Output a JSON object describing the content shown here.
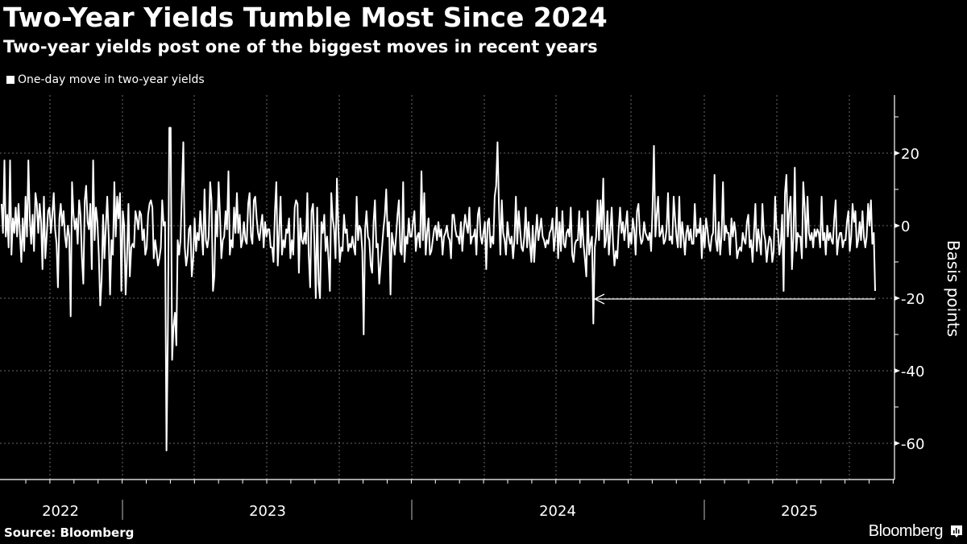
{
  "header": {
    "title": "Two-Year Yields Tumble Most Since 2024",
    "subtitle": "Two-year yields post one of the biggest moves in recent years"
  },
  "legend": {
    "label": "One-day move in two-year yields",
    "color": "#ffffff"
  },
  "footer": {
    "source": "Source: Bloomberg",
    "brand": "Bloomberg"
  },
  "chart_data": {
    "type": "line",
    "title": "Two-Year Yields Tumble Most Since 2024",
    "subtitle": "Two-year yields post one of the biggest moves in recent years",
    "xlabel": "",
    "ylabel": "Basis points",
    "ylim": [
      -70,
      35
    ],
    "yticks": [
      20,
      0,
      -20,
      -40,
      -60
    ],
    "xtick_labels": [
      "2022",
      "2023",
      "2024",
      "2025"
    ],
    "grid": true,
    "legend_position": "top-left",
    "series": [
      {
        "name": "One-day move in two-year yields",
        "note": "Approximate daily values read from chart (basis points), chronological from 2022 to 2025",
        "values": [
          6,
          -2,
          18,
          -3,
          3,
          -6,
          18,
          -8,
          2,
          -2,
          5,
          -3,
          6,
          -2,
          -10,
          2,
          -7,
          8,
          -3,
          18,
          2,
          -5,
          3,
          -7,
          9,
          6,
          -2,
          6,
          1,
          -12,
          8,
          -9,
          -3,
          4,
          5,
          -2,
          3,
          9,
          -1,
          -5,
          -17,
          2,
          6,
          0,
          4,
          -3,
          -6,
          0,
          -3,
          -25,
          12,
          3,
          -1,
          2,
          -5,
          7,
          3,
          -9,
          -16,
          7,
          11,
          1,
          -1,
          6,
          -12,
          18,
          -4,
          5,
          1,
          -8,
          -22,
          -15,
          3,
          -9,
          0,
          8,
          -3,
          -19,
          -4,
          -8,
          12,
          -3,
          8,
          2,
          9,
          -18,
          4,
          0,
          -19,
          -9,
          6,
          -14,
          -6,
          -5,
          -6,
          4,
          2,
          -1,
          4,
          3,
          -4,
          -1,
          -8,
          -6,
          3,
          6,
          7,
          5,
          -9,
          -4,
          -7,
          -11,
          -9,
          -6,
          7,
          0,
          1,
          -62,
          -30,
          27,
          27,
          -37,
          -28,
          -24,
          -33,
          -4,
          -8,
          -4,
          10,
          23,
          -6,
          -11,
          -8,
          -1,
          0,
          -14,
          -9,
          2,
          -7,
          -2,
          -4,
          4,
          -2,
          -8,
          10,
          -4,
          -6,
          -3,
          12,
          7,
          -18,
          -14,
          4,
          -3,
          12,
          3,
          -9,
          -4,
          -3,
          4,
          -1,
          15,
          -8,
          -4,
          -6,
          5,
          -2,
          9,
          -2,
          3,
          -6,
          -4,
          1,
          -4,
          -5,
          6,
          9,
          -3,
          -5,
          7,
          8,
          2,
          -2,
          -4,
          0,
          3,
          -6,
          1,
          -3,
          -1,
          -1,
          -6,
          -6,
          -10,
          4,
          12,
          -11,
          -2,
          8,
          -8,
          -4,
          -6,
          -1,
          -2,
          2,
          -9,
          -4,
          -8,
          5,
          7,
          6,
          -13,
          2,
          -4,
          -5,
          -2,
          -5,
          9,
          -8,
          -17,
          4,
          6,
          -4,
          -20,
          5,
          -16,
          -20,
          1,
          -2,
          3,
          -7,
          -3,
          -9,
          -18,
          9,
          2,
          -1,
          -9,
          13,
          -1,
          -10,
          -6,
          -7,
          3,
          -2,
          -1,
          -7,
          -5,
          -6,
          -3,
          -6,
          -8,
          8,
          -4,
          0,
          -1,
          -7,
          -30,
          -1,
          4,
          -3,
          -4,
          -11,
          -13,
          1,
          7,
          -6,
          -5,
          -16,
          -11,
          -6,
          -1,
          3,
          10,
          -3,
          1,
          -19,
          -2,
          -5,
          -8,
          -3,
          3,
          7,
          -7,
          -8,
          12,
          -10,
          -3,
          -5,
          2,
          -3,
          -3,
          1,
          4,
          -7,
          -3,
          -2,
          -6,
          15,
          -4,
          9,
          -8,
          -2,
          2,
          -8,
          -7,
          -4,
          -1,
          0,
          -4,
          1,
          -3,
          -1,
          -8,
          -3,
          -2,
          0,
          -3,
          -4,
          -9,
          3,
          3,
          -1,
          -3,
          -3,
          -5,
          1,
          -7,
          -1,
          3,
          0,
          -2,
          5,
          -5,
          -3,
          -3,
          -1,
          -8,
          3,
          5,
          -3,
          -5,
          -2,
          1,
          -12,
          1,
          2,
          -6,
          -3,
          -5,
          8,
          11,
          23,
          5,
          -8,
          7,
          -2,
          -4,
          -8,
          1,
          -3,
          -5,
          -3,
          -9,
          -4,
          8,
          -5,
          4,
          -1,
          -6,
          -7,
          -3,
          5,
          -6,
          1,
          -5,
          -10,
          0,
          -10,
          -3,
          3,
          -4,
          -1,
          2,
          -3,
          -4,
          -6,
          -4,
          -5,
          -2,
          -1,
          2,
          -7,
          -3,
          5,
          -9,
          1,
          -7,
          4,
          -5,
          -6,
          -2,
          -1,
          -3,
          5,
          -8,
          -10,
          -5,
          -4,
          -4,
          4,
          -6,
          2,
          -5,
          -9,
          -14,
          4,
          -8,
          -5,
          -3,
          -27,
          -6,
          -3,
          7,
          -4,
          7,
          -1,
          13,
          -6,
          -4,
          4,
          -8,
          -2,
          5,
          -5,
          -11,
          -7,
          -9,
          -1,
          5,
          -2,
          1,
          -4,
          0,
          4,
          -6,
          -2,
          -5,
          2,
          -1,
          -8,
          4,
          6,
          -2,
          -5,
          -4,
          1,
          -2,
          -3,
          -4,
          -2,
          -7,
          5,
          22,
          -3,
          3,
          8,
          -3,
          -2,
          0,
          -5,
          -4,
          -1,
          9,
          -4,
          -3,
          -5,
          8,
          2,
          -3,
          -6,
          8,
          -6,
          1,
          -3,
          -8,
          -2,
          0,
          -4,
          -1,
          -5,
          -5,
          6,
          -3,
          -1,
          -2,
          2,
          -9,
          0,
          -6,
          2,
          -1,
          -5,
          -7,
          -3,
          -2,
          14,
          -4,
          -7,
          1,
          -8,
          -3,
          12,
          -4,
          0,
          -2,
          -2,
          -8,
          2,
          -3,
          1,
          -2,
          -9,
          -7,
          -6,
          -7,
          -2,
          -4,
          -5,
          1,
          3,
          -6,
          -4,
          -10,
          -2,
          6,
          -7,
          -1,
          -4,
          -8,
          6,
          -2,
          -4,
          -10,
          -6,
          -3,
          -4,
          -10,
          -7,
          8,
          -1,
          -1,
          -8,
          -5,
          3,
          -18,
          9,
          14,
          -3,
          4,
          8,
          -12,
          -3,
          16,
          -7,
          -2,
          -3,
          -3,
          -9,
          12,
          5,
          -6,
          8,
          -2,
          -4,
          -2,
          -6,
          -1,
          -3,
          -1,
          -2,
          -6,
          8,
          -4,
          -2,
          -8,
          0,
          -4,
          -2,
          -4,
          -5,
          2,
          7,
          -8,
          -4,
          -2,
          -2,
          -6,
          -4,
          -4,
          1,
          4,
          -7,
          -3,
          6,
          1,
          4,
          -6,
          -4,
          1,
          -4,
          4,
          -3,
          -6,
          -3,
          6,
          0,
          7,
          -5,
          -2,
          -18
        ]
      }
    ],
    "annotations": [
      {
        "type": "arrow",
        "from_value": -20,
        "to_value": -20,
        "description": "Horizontal arrow from latest value (~-19 bp) pointing back to the 2024 low (~-27 bp)"
      }
    ]
  }
}
